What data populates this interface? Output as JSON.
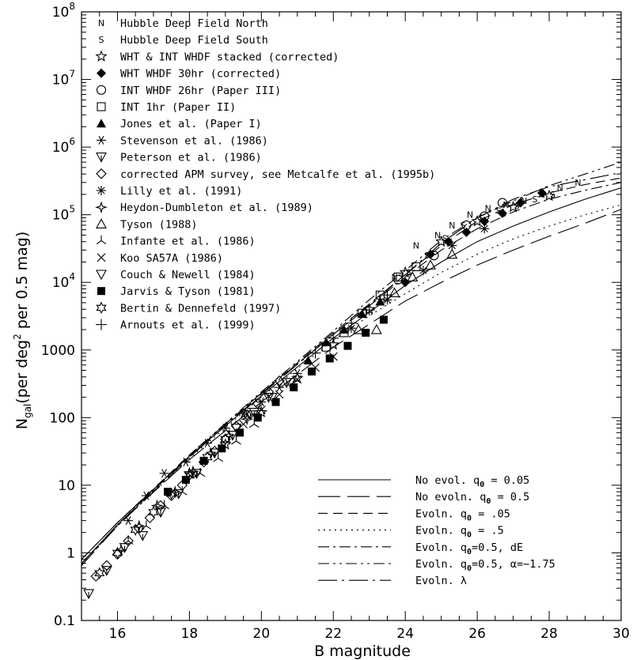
{
  "chart_data": {
    "type": "scatter",
    "xlabel": "B magnitude",
    "ylabel_main": "N",
    "ylabel_sub": "gal",
    "ylabel_rest": "(per deg",
    "ylabel_sup": "2",
    "ylabel_end": " per 0.5 mag)",
    "xlim": [
      15,
      30
    ],
    "ylim": [
      0.1,
      100000000
    ],
    "y_scale": "log",
    "x_ticks": [
      16,
      18,
      20,
      22,
      24,
      26,
      28,
      30
    ],
    "x_tick_labels": [
      "16",
      "18",
      "20",
      "22",
      "24",
      "26",
      "28",
      "30"
    ],
    "y_ticks": [
      {
        "value": 0.1,
        "label": "0.1"
      },
      {
        "value": 1,
        "label": "1"
      },
      {
        "value": 10,
        "label": "10"
      },
      {
        "value": 100,
        "label": "100"
      },
      {
        "value": 1000,
        "label": "1000"
      },
      {
        "value": 10000,
        "label": "10",
        "exp": "4"
      },
      {
        "value": 100000,
        "label": "10",
        "exp": "5"
      },
      {
        "value": 1000000,
        "label": "10",
        "exp": "6"
      },
      {
        "value": 10000000,
        "label": "10",
        "exp": "7"
      },
      {
        "value": 100000000,
        "label": "10",
        "exp": "8"
      }
    ],
    "legend_position": "top-left",
    "series": [
      {
        "name": "Hubble Deep Field North",
        "marker": "N",
        "points": [
          [
            23.7,
            12000
          ],
          [
            24.3,
            35000
          ],
          [
            24.9,
            50000
          ],
          [
            25.3,
            70000
          ],
          [
            25.8,
            100000
          ],
          [
            26.3,
            125000
          ],
          [
            26.8,
            140000
          ],
          [
            27.3,
            160000
          ],
          [
            27.8,
            200000
          ],
          [
            28.3,
            250000
          ],
          [
            28.8,
            300000
          ]
        ]
      },
      {
        "name": "Hubble Deep Field South",
        "marker": "S",
        "points": [
          [
            24.1,
            14000
          ],
          [
            24.6,
            25000
          ],
          [
            25.1,
            45000
          ],
          [
            25.6,
            70000
          ],
          [
            26.1,
            90000
          ],
          [
            26.6,
            115000
          ],
          [
            27.1,
            135000
          ],
          [
            27.6,
            170000
          ],
          [
            28.1,
            200000
          ]
        ]
      },
      {
        "name": "WHT & INT WHDF stacked (corrected)",
        "marker": "star5",
        "points": [
          [
            18,
            15
          ],
          [
            19,
            40
          ],
          [
            20,
            120
          ],
          [
            21,
            380
          ],
          [
            22,
            1200
          ],
          [
            23,
            4000
          ],
          [
            24,
            14000
          ],
          [
            25,
            40000
          ],
          [
            26,
            80000
          ],
          [
            27,
            130000
          ],
          [
            28,
            190000
          ]
        ]
      },
      {
        "name": "WHT WHDF 30hr (corrected)",
        "marker": "diamond-filled",
        "points": [
          [
            24,
            10000
          ],
          [
            24.7,
            26000
          ],
          [
            25.2,
            40000
          ],
          [
            25.7,
            55000
          ],
          [
            26.2,
            80000
          ],
          [
            26.7,
            105000
          ],
          [
            27.2,
            150000
          ],
          [
            27.8,
            210000
          ]
        ]
      },
      {
        "name": "INT WHDF 26hr (Paper III)",
        "marker": "circle",
        "points": [
          [
            23.8,
            11000
          ],
          [
            24.8,
            25000
          ],
          [
            25.7,
            70000
          ],
          [
            26.2,
            95000
          ],
          [
            26.7,
            150000
          ]
        ]
      },
      {
        "name": "INT 1hr (Paper II)",
        "marker": "square",
        "points": [
          [
            21.8,
            1100
          ],
          [
            22.3,
            1800
          ],
          [
            22.8,
            3500
          ],
          [
            23.3,
            6500
          ],
          [
            23.8,
            12000
          ],
          [
            24.3,
            17000
          ]
        ]
      },
      {
        "name": "Jones et al. (Paper I)",
        "marker": "triangle-filled",
        "points": [
          [
            21.3,
            700
          ],
          [
            21.8,
            1300
          ],
          [
            22.3,
            2000
          ],
          [
            22.8,
            3400
          ],
          [
            23.3,
            5200
          ]
        ]
      },
      {
        "name": "Stevenson et al. (1986)",
        "marker": "asterisk6",
        "points": [
          [
            16.3,
            3
          ],
          [
            16.8,
            7
          ],
          [
            17.3,
            15
          ],
          [
            17.9,
            22
          ],
          [
            18.5,
            42
          ],
          [
            19,
            70
          ],
          [
            19.5,
            115
          ],
          [
            20,
            170
          ],
          [
            20.5,
            280
          ],
          [
            21,
            450
          ]
        ]
      },
      {
        "name": "Peterson et al. (1986)",
        "marker": "triangle-down-y",
        "points": [
          [
            15.2,
            0.25
          ],
          [
            15.7,
            0.55
          ],
          [
            16.2,
            1.2
          ],
          [
            16.7,
            1.8
          ],
          [
            17.2,
            4
          ],
          [
            17.7,
            7.5
          ],
          [
            18.2,
            15
          ],
          [
            18.7,
            30
          ],
          [
            19.2,
            55
          ],
          [
            19.7,
            110
          ],
          [
            20.2,
            200
          ],
          [
            20.7,
            330
          ]
        ]
      },
      {
        "name": "corrected APM survey, see Metcalfe et al. (1995b)",
        "marker": "diamond",
        "points": [
          [
            15.4,
            0.45
          ],
          [
            15.7,
            0.65
          ],
          [
            16,
            0.95
          ],
          [
            16.3,
            1.5
          ],
          [
            16.6,
            2.3
          ],
          [
            16.9,
            3.3
          ],
          [
            17.2,
            5
          ],
          [
            17.5,
            7
          ],
          [
            17.8,
            10
          ],
          [
            18.1,
            15
          ],
          [
            18.4,
            22
          ],
          [
            18.7,
            32
          ],
          [
            19,
            48
          ],
          [
            19.3,
            75
          ],
          [
            19.6,
            110
          ],
          [
            19.9,
            160
          ],
          [
            20.2,
            240
          ],
          [
            20.5,
            350
          ]
        ]
      },
      {
        "name": "Lilly et al. (1991)",
        "marker": "asterisk8",
        "points": [
          [
            22.5,
            2100
          ],
          [
            23.5,
            5500
          ],
          [
            24.5,
            15000
          ],
          [
            25.3,
            35000
          ],
          [
            26.2,
            62000
          ]
        ]
      },
      {
        "name": "Heydon-Dumbleton et al. (1989)",
        "marker": "star4",
        "points": [
          [
            16.1,
            1.1
          ],
          [
            16.6,
            2.5
          ],
          [
            17.1,
            5
          ],
          [
            17.6,
            8
          ],
          [
            18.1,
            16
          ],
          [
            18.6,
            30
          ],
          [
            19.1,
            55
          ],
          [
            19.6,
            95
          ]
        ]
      },
      {
        "name": "Tyson (1988)",
        "marker": "triangle",
        "points": [
          [
            22.7,
            2000
          ],
          [
            23.2,
            2000
          ],
          [
            23.7,
            7000
          ],
          [
            24.2,
            12000
          ],
          [
            24.7,
            18000
          ],
          [
            25.3,
            26000
          ]
        ]
      },
      {
        "name": "Infante et al. (1986)",
        "marker": "tripod",
        "points": [
          [
            16.3,
            1.5
          ],
          [
            16.8,
            2.5
          ],
          [
            17.3,
            5
          ],
          [
            17.8,
            8
          ],
          [
            18.3,
            15
          ],
          [
            18.8,
            25
          ],
          [
            19.3,
            45
          ],
          [
            19.8,
            80
          ]
        ]
      },
      {
        "name": "Koo SA57A (1986)",
        "marker": "cross",
        "points": [
          [
            19.5,
            80
          ],
          [
            20,
            130
          ],
          [
            20.5,
            220
          ],
          [
            21,
            370
          ],
          [
            21.5,
            550
          ],
          [
            22,
            800
          ]
        ]
      },
      {
        "name": "Couch & Newell (1984)",
        "marker": "triangle-down",
        "points": [
          [
            19.3,
            70
          ],
          [
            19.8,
            120
          ],
          [
            20.3,
            200
          ],
          [
            20.8,
            330
          ]
        ]
      },
      {
        "name": "Jarvis & Tyson (1981)",
        "marker": "square-filled",
        "points": [
          [
            17.4,
            8
          ],
          [
            17.9,
            12
          ],
          [
            18.4,
            23
          ],
          [
            18.9,
            35
          ],
          [
            19.4,
            60
          ],
          [
            19.9,
            100
          ],
          [
            20.4,
            170
          ],
          [
            20.9,
            280
          ],
          [
            21.4,
            480
          ],
          [
            21.9,
            750
          ],
          [
            22.4,
            1150
          ],
          [
            22.9,
            1800
          ],
          [
            23.4,
            2800
          ]
        ]
      },
      {
        "name": "Bertin & Dennefeld (1997)",
        "marker": "star6",
        "points": [
          [
            15.5,
            0.5
          ],
          [
            16,
            1
          ],
          [
            16.5,
            2.2
          ],
          [
            17,
            4
          ],
          [
            17.5,
            7.5
          ],
          [
            18,
            14
          ],
          [
            18.5,
            26
          ],
          [
            19,
            48
          ]
        ]
      },
      {
        "name": "Arnouts et al. (1999)",
        "marker": "plus",
        "points": [
          [
            21.5,
            900
          ],
          [
            22,
            1500
          ],
          [
            22.5,
            2500
          ],
          [
            23,
            3900
          ],
          [
            23.5,
            6500
          ]
        ]
      }
    ],
    "models": [
      {
        "name": "No evol. q",
        "sub": "0",
        "rest": " = 0.05",
        "dash": "",
        "points": [
          [
            15,
            0.8
          ],
          [
            16,
            2.8
          ],
          [
            18,
            27
          ],
          [
            20,
            210
          ],
          [
            22,
            1500
          ],
          [
            23,
            3600
          ],
          [
            24,
            9000
          ],
          [
            25,
            20000
          ],
          [
            26,
            40000
          ],
          [
            27,
            68000
          ],
          [
            28,
            110000
          ],
          [
            29,
            170000
          ],
          [
            30,
            250000
          ]
        ]
      },
      {
        "name": "No evoln. q",
        "sub": "0",
        "rest": " = 0.5",
        "dash": "28,9",
        "points": [
          [
            15,
            0.7
          ],
          [
            16,
            2.6
          ],
          [
            18,
            24
          ],
          [
            20,
            170
          ],
          [
            22,
            1100
          ],
          [
            23,
            2400
          ],
          [
            24,
            5300
          ],
          [
            25,
            10000
          ],
          [
            26,
            18000
          ],
          [
            27,
            30000
          ],
          [
            28,
            48000
          ],
          [
            29,
            75000
          ],
          [
            30,
            120000
          ]
        ]
      },
      {
        "name": "Evoln. q",
        "sub": "0",
        "rest": " = .05",
        "dash": "12,7",
        "points": [
          [
            15,
            0.8
          ],
          [
            16,
            2.8
          ],
          [
            18,
            28
          ],
          [
            20,
            230
          ],
          [
            22,
            1800
          ],
          [
            23,
            4800
          ],
          [
            24,
            13000
          ],
          [
            25,
            35000
          ],
          [
            26,
            80000
          ],
          [
            27,
            140000
          ],
          [
            28,
            210000
          ],
          [
            29,
            280000
          ],
          [
            30,
            350000
          ]
        ]
      },
      {
        "name": "Evoln. q",
        "sub": "0",
        "rest": " = .5",
        "dash": "2,5",
        "points": [
          [
            15,
            0.7
          ],
          [
            16,
            2.5
          ],
          [
            18,
            25
          ],
          [
            20,
            200
          ],
          [
            22,
            1400
          ],
          [
            23,
            3200
          ],
          [
            24,
            6800
          ],
          [
            25,
            14000
          ],
          [
            26,
            26000
          ],
          [
            27,
            44000
          ],
          [
            28,
            68000
          ],
          [
            29,
            100000
          ],
          [
            30,
            140000
          ]
        ]
      },
      {
        "name": "Evoln. q",
        "sub": "0",
        "rest": "=0.5, dE",
        "dash": "14,5,3,5",
        "points": [
          [
            15,
            0.7
          ],
          [
            16,
            2.6
          ],
          [
            18,
            27
          ],
          [
            20,
            230
          ],
          [
            22,
            1700
          ],
          [
            23,
            4500
          ],
          [
            24,
            12000
          ],
          [
            25,
            30000
          ],
          [
            26,
            62000
          ],
          [
            27,
            110000
          ],
          [
            28,
            170000
          ],
          [
            29,
            230000
          ],
          [
            30,
            300000
          ]
        ]
      },
      {
        "name": "Evoln. q",
        "sub": "0",
        "rest": "=0.5, α=−1.75",
        "dash": "14,5,3,5,3,5",
        "points": [
          [
            15,
            0.65
          ],
          [
            16,
            2.6
          ],
          [
            18,
            28
          ],
          [
            20,
            240
          ],
          [
            22,
            1900
          ],
          [
            23,
            5500
          ],
          [
            24,
            15000
          ],
          [
            25,
            42000
          ],
          [
            26,
            90000
          ],
          [
            27,
            160000
          ],
          [
            28,
            270000
          ],
          [
            29,
            400000
          ],
          [
            30,
            600000
          ]
        ]
      },
      {
        "name": "Evoln. λ",
        "sub": "",
        "rest": "",
        "dash": "24,6,3,6",
        "points": [
          [
            15,
            0.65
          ],
          [
            16,
            2.5
          ],
          [
            18,
            26
          ],
          [
            20,
            220
          ],
          [
            22,
            1700
          ],
          [
            23,
            4600
          ],
          [
            24,
            13000
          ],
          [
            25,
            38000
          ],
          [
            26,
            90000
          ],
          [
            27,
            170000
          ],
          [
            28,
            260000
          ],
          [
            29,
            330000
          ],
          [
            30,
            420000
          ]
        ]
      }
    ]
  }
}
